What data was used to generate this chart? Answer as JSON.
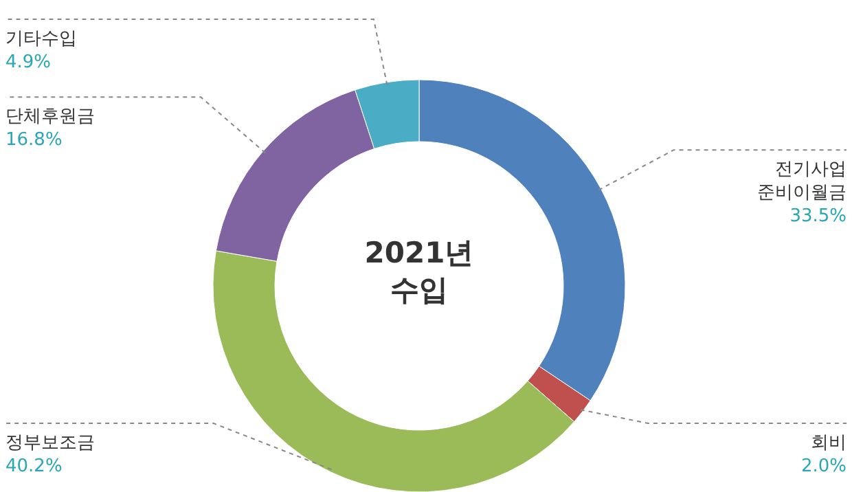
{
  "chart_data": {
    "type": "donut",
    "title": "2021년 수입",
    "categories": [
      "전기사업 준비이월금",
      "회비",
      "정부보조금",
      "단체후원금",
      "기타수입"
    ],
    "values": [
      33.5,
      2.0,
      40.2,
      16.8,
      4.9
    ],
    "colors": [
      "#4f81bd",
      "#c0504d",
      "#9bbb59",
      "#8064a2",
      "#4bacc6"
    ],
    "value_labels": [
      "33.5%",
      "2.0%",
      "40.2%",
      "16.8%",
      "4.9%"
    ]
  }
}
